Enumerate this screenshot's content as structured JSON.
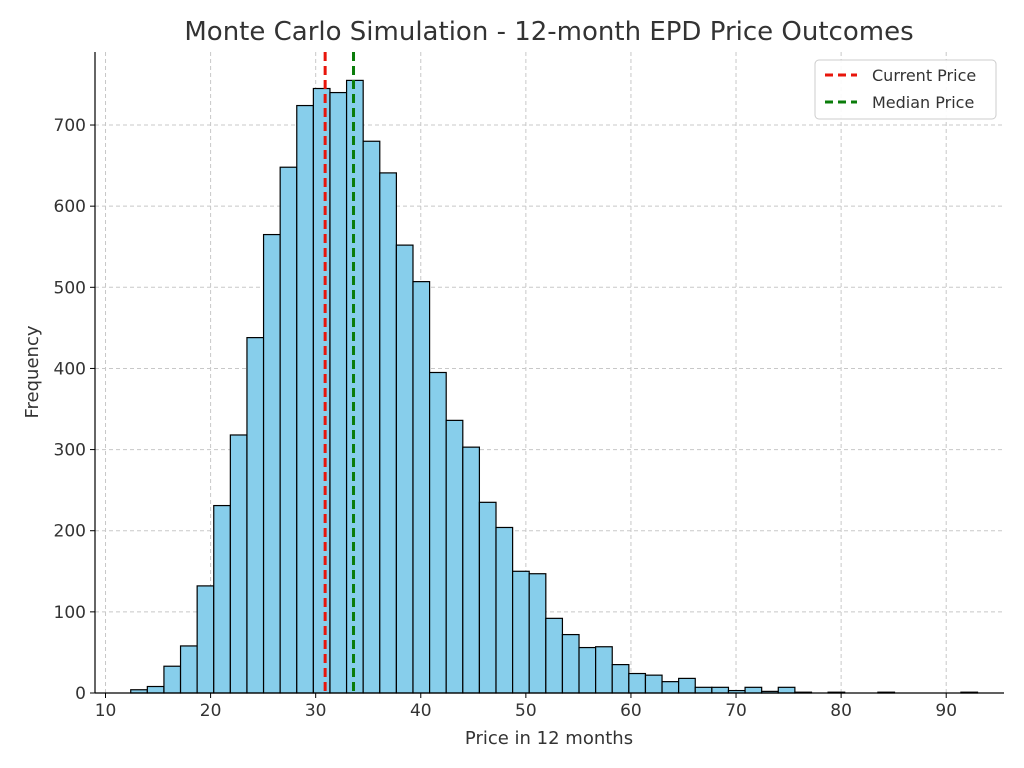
{
  "chart_data": {
    "type": "bar",
    "title": "Monte Carlo Simulation - 12-month EPD Price Outcomes",
    "xlabel": "Price in 12 months",
    "ylabel": "Frequency",
    "xlim": [
      9.0,
      95.5
    ],
    "ylim": [
      0,
      790
    ],
    "xticks": [
      10,
      20,
      30,
      40,
      50,
      60,
      70,
      80,
      90
    ],
    "yticks": [
      0,
      100,
      200,
      300,
      400,
      500,
      600,
      700
    ],
    "grid": true,
    "legend_position": "top-right",
    "bar_color": "#87CEEB",
    "bin_start": 12.4,
    "bin_width": 1.58,
    "counts": [
      4,
      8,
      33,
      58,
      132,
      231,
      318,
      438,
      565,
      648,
      724,
      745,
      740,
      755,
      680,
      641,
      552,
      507,
      395,
      336,
      303,
      235,
      204,
      150,
      147,
      92,
      72,
      56,
      57,
      35,
      24,
      22,
      14,
      18,
      7,
      7,
      3,
      7,
      2,
      7,
      1,
      0,
      1,
      0,
      0,
      1,
      0,
      0,
      0,
      0,
      1
    ],
    "reference_lines": [
      {
        "name": "Current Price",
        "x": 30.9,
        "color": "#e8150b",
        "style": "dashed"
      },
      {
        "name": "Median Price",
        "x": 33.6,
        "color": "#0a7c0a",
        "style": "dashed"
      }
    ]
  }
}
